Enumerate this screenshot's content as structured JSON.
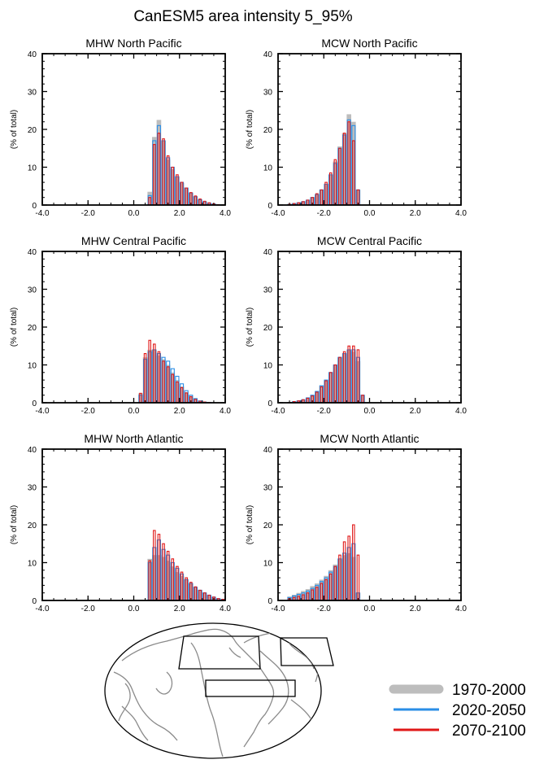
{
  "figure": {
    "title": "CanESM5 area intensity 5_95%",
    "colors": {
      "p1": "#bdbdbd",
      "p2": "#2a8ee6",
      "p3": "#e01818",
      "axis": "#000000",
      "coast": "#8a8a8a",
      "box": "#000000"
    },
    "legend": [
      "1970-2000",
      "2020-2050",
      "2070-2100"
    ]
  },
  "chart_data": [
    {
      "type": "bar",
      "title": "MHW North Pacific",
      "ylabel": "(% of total)",
      "xlim": [
        -4,
        4
      ],
      "ylim": [
        0,
        40
      ],
      "xticks": [
        "-4.0",
        "-2.0",
        "0.0",
        "2.0",
        "4.0"
      ],
      "yticks": [
        "0",
        "10",
        "20",
        "30",
        "40"
      ],
      "bin_width": 0.2,
      "bin_start": 0.6,
      "series": [
        {
          "name": "1970-2000",
          "values": [
            3.5,
            18,
            22.5,
            17,
            12,
            9.5,
            7.5,
            5.8,
            4.5,
            3.2,
            2.3,
            1.5,
            0.9,
            0.5,
            0.3,
            0.1,
            0.05
          ]
        },
        {
          "name": "2020-2050",
          "values": [
            2.5,
            17,
            21,
            17,
            12.5,
            10,
            7.5,
            6,
            4.5,
            3.2,
            2.2,
            1.4,
            0.9,
            0.5,
            0.3,
            0.1,
            0.05
          ]
        },
        {
          "name": "2070-2100",
          "values": [
            2,
            16,
            19,
            17.5,
            13,
            10,
            8,
            6,
            4.5,
            3.3,
            2.4,
            1.6,
            1,
            0.6,
            0.3,
            0.1,
            0.05
          ]
        }
      ]
    },
    {
      "type": "bar",
      "title": "MCW North Pacific",
      "ylabel": "(% of total)",
      "xlim": [
        -4,
        4
      ],
      "ylim": [
        0,
        40
      ],
      "xticks": [
        "-4.0",
        "-2.0",
        "0.0",
        "2.0",
        "4.0"
      ],
      "yticks": [
        "0",
        "10",
        "20",
        "30",
        "40"
      ],
      "bin_width": 0.2,
      "bin_start": -3.6,
      "series": [
        {
          "name": "1970-2000",
          "values": [
            0.2,
            0.4,
            0.6,
            0.9,
            1.3,
            2,
            2.8,
            4,
            5.5,
            8,
            11.5,
            15.5,
            19,
            24,
            22,
            4
          ]
        },
        {
          "name": "2020-2050",
          "values": [
            0.2,
            0.4,
            0.6,
            0.9,
            1.3,
            2,
            2.8,
            4,
            5.5,
            8,
            11,
            15,
            18.5,
            22.5,
            21,
            4
          ]
        },
        {
          "name": "2070-2100",
          "values": [
            0.2,
            0.4,
            0.6,
            0.9,
            1.3,
            2,
            3,
            4,
            6,
            8.5,
            12,
            15,
            19,
            22,
            17,
            4
          ]
        }
      ]
    },
    {
      "type": "bar",
      "title": "MHW Central Pacific",
      "ylabel": "(% of total)",
      "xlim": [
        -4,
        4
      ],
      "ylim": [
        0,
        40
      ],
      "xticks": [
        "-4.0",
        "-2.0",
        "0.0",
        "2.0",
        "4.0"
      ],
      "yticks": [
        "0",
        "10",
        "20",
        "30",
        "40"
      ],
      "bin_width": 0.2,
      "bin_start": 0.2,
      "series": [
        {
          "name": "1970-2000",
          "values": [
            2.5,
            12,
            14,
            14,
            12.5,
            11.5,
            10,
            8,
            6,
            4.3,
            2.8,
            1.8,
            1,
            0.4,
            0.2,
            0.1
          ]
        },
        {
          "name": "2020-2050",
          "values": [
            2,
            11.5,
            13.5,
            14,
            13,
            12,
            11,
            9,
            7,
            5,
            3.2,
            2,
            1.1,
            0.5,
            0.2,
            0.1
          ]
        },
        {
          "name": "2070-2100",
          "values": [
            2.5,
            13,
            16.5,
            15.5,
            13.5,
            11,
            9.5,
            7.5,
            5.5,
            4,
            2.6,
            1.6,
            0.9,
            0.4,
            0.2,
            0.1
          ]
        }
      ]
    },
    {
      "type": "bar",
      "title": "MCW Central Pacific",
      "ylabel": "(% of total)",
      "xlim": [
        -4,
        4
      ],
      "ylim": [
        0,
        40
      ],
      "xticks": [
        "-4.0",
        "-2.0",
        "0.0",
        "2.0",
        "4.0"
      ],
      "yticks": [
        "0",
        "10",
        "20",
        "30",
        "40"
      ],
      "bin_width": 0.2,
      "bin_start": -3.6,
      "series": [
        {
          "name": "1970-2000",
          "values": [
            0.1,
            0.3,
            0.5,
            0.8,
            1.3,
            2,
            3,
            4.5,
            6,
            8,
            10,
            12,
            13,
            14,
            13.5,
            11,
            2
          ]
        },
        {
          "name": "2020-2050",
          "values": [
            0.1,
            0.3,
            0.5,
            0.8,
            1.3,
            2,
            3,
            4.5,
            6,
            8,
            10,
            12,
            13,
            14,
            14,
            12,
            2
          ]
        },
        {
          "name": "2070-2100",
          "values": [
            0.1,
            0.3,
            0.5,
            0.8,
            1.2,
            1.8,
            2.8,
            4.2,
            5.8,
            8,
            10,
            12,
            13.5,
            15,
            15,
            14,
            2
          ]
        }
      ]
    },
    {
      "type": "bar",
      "title": "MHW North Atlantic",
      "ylabel": "(% of total)",
      "xlim": [
        -4,
        4
      ],
      "ylim": [
        0,
        40
      ],
      "xticks": [
        "-4.0",
        "-2.0",
        "0.0",
        "2.0",
        "4.0"
      ],
      "yticks": [
        "0",
        "10",
        "20",
        "30",
        "40"
      ],
      "bin_width": 0.2,
      "bin_start": 0.6,
      "series": [
        {
          "name": "1970-2000",
          "values": [
            11,
            12,
            12,
            11.5,
            10.5,
            9,
            7.5,
            6.5,
            5.5,
            4.5,
            3.5,
            2.8,
            2,
            1.4,
            0.9,
            0.5,
            0.3
          ]
        },
        {
          "name": "2020-2050",
          "values": [
            10,
            14,
            16,
            13.5,
            12,
            10,
            8.5,
            7,
            5.5,
            4.5,
            3.5,
            2.7,
            2,
            1.4,
            0.9,
            0.5,
            0.3
          ]
        },
        {
          "name": "2070-2100",
          "values": [
            10.5,
            18.5,
            17.5,
            15,
            13,
            11,
            9,
            7.5,
            6,
            4.8,
            3.6,
            2.7,
            2,
            1.4,
            0.9,
            0.5,
            0.3
          ]
        }
      ]
    },
    {
      "type": "bar",
      "title": "MCW North Atlantic",
      "ylabel": "(% of total)",
      "xlim": [
        -4,
        4
      ],
      "ylim": [
        0,
        40
      ],
      "xticks": [
        "-4.0",
        "-2.0",
        "0.0",
        "2.0",
        "4.0"
      ],
      "yticks": [
        "0",
        "10",
        "20",
        "30",
        "40"
      ],
      "bin_width": 0.2,
      "bin_start": -3.6,
      "series": [
        {
          "name": "1970-2000",
          "values": [
            1,
            1.5,
            2,
            2.5,
            3,
            3.8,
            4.5,
            5.5,
            6.5,
            8,
            9.5,
            11,
            12,
            12.5,
            11.5,
            2
          ]
        },
        {
          "name": "2020-2050",
          "values": [
            0.8,
            1.2,
            1.6,
            2,
            2.5,
            3.2,
            4,
            5,
            6,
            7.5,
            9,
            11,
            12.5,
            14,
            15,
            2
          ]
        },
        {
          "name": "2070-2100",
          "values": [
            0.5,
            0.8,
            1.1,
            1.5,
            2,
            2.8,
            3.5,
            4.5,
            5.5,
            7,
            9,
            12,
            15.5,
            17,
            20,
            12
          ]
        }
      ]
    }
  ]
}
